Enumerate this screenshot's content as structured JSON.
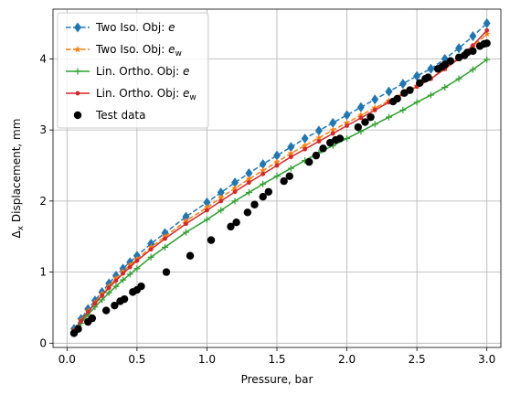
{
  "chart_data": {
    "type": "line",
    "xlabel": "Pressure, bar",
    "ylabel": "Δx Displacement, mm",
    "ylabel_main": "Δ",
    "ylabel_sub": "x",
    "ylabel_rest": " Displacement, mm",
    "xlim": [
      -0.1,
      3.1
    ],
    "ylim": [
      -0.06,
      4.7
    ],
    "xticks": [
      0.0,
      0.5,
      1.0,
      1.5,
      2.0,
      2.5,
      3.0
    ],
    "xtick_labels": [
      "0.0",
      "0.5",
      "1.0",
      "1.5",
      "2.0",
      "2.5",
      "3.0"
    ],
    "yticks": [
      0,
      1,
      2,
      3,
      4
    ],
    "ytick_labels": [
      "0",
      "1",
      "2",
      "3",
      "4"
    ],
    "grid": true,
    "legend_position": "upper-left",
    "x": [
      0.05,
      0.1,
      0.15,
      0.2,
      0.25,
      0.3,
      0.35,
      0.4,
      0.45,
      0.5,
      0.6,
      0.7,
      0.85,
      1.0,
      1.1,
      1.2,
      1.3,
      1.4,
      1.5,
      1.6,
      1.7,
      1.8,
      1.9,
      2.0,
      2.1,
      2.2,
      2.3,
      2.4,
      2.5,
      2.6,
      2.7,
      2.8,
      2.9,
      3.0
    ],
    "series": [
      {
        "name": "Two Iso. Obj: e",
        "legend_main": "Two Iso. Obj: ",
        "legend_italic": "e",
        "legend_sub": "",
        "color": "#1f77b4",
        "dashed": true,
        "marker": "diamond",
        "values": [
          0.2,
          0.34,
          0.48,
          0.6,
          0.72,
          0.84,
          0.95,
          1.05,
          1.14,
          1.23,
          1.4,
          1.55,
          1.78,
          1.98,
          2.12,
          2.26,
          2.39,
          2.52,
          2.64,
          2.76,
          2.88,
          2.99,
          3.1,
          3.21,
          3.32,
          3.43,
          3.54,
          3.65,
          3.76,
          3.86,
          4.0,
          4.15,
          4.32,
          4.5
        ]
      },
      {
        "name": "Two Iso. Obj: e_w",
        "legend_main": "Two Iso. Obj: ",
        "legend_italic": "e",
        "legend_sub": "w",
        "color": "#ff7f0e",
        "dashed": true,
        "marker": "star",
        "values": [
          0.18,
          0.32,
          0.45,
          0.57,
          0.69,
          0.8,
          0.91,
          1.01,
          1.1,
          1.18,
          1.35,
          1.5,
          1.72,
          1.91,
          2.05,
          2.18,
          2.31,
          2.43,
          2.55,
          2.67,
          2.78,
          2.89,
          3.0,
          3.1,
          3.21,
          3.31,
          3.41,
          3.52,
          3.62,
          3.73,
          3.86,
          4.0,
          4.17,
          4.35
        ]
      },
      {
        "name": "Lin. Ortho. Obj: e",
        "legend_main": "Lin. Ortho. Obj: ",
        "legend_italic": "e",
        "legend_sub": "",
        "color": "#2ca02c",
        "dashed": false,
        "marker": "plus",
        "values": [
          0.16,
          0.28,
          0.4,
          0.51,
          0.61,
          0.71,
          0.8,
          0.89,
          0.97,
          1.05,
          1.21,
          1.35,
          1.56,
          1.74,
          1.87,
          2.0,
          2.12,
          2.24,
          2.35,
          2.46,
          2.57,
          2.68,
          2.78,
          2.88,
          2.98,
          3.08,
          3.18,
          3.28,
          3.39,
          3.49,
          3.6,
          3.72,
          3.85,
          3.99
        ]
      },
      {
        "name": "Lin. Ortho. Obj: e_w",
        "legend_main": "Lin. Ortho. Obj: ",
        "legend_italic": "e",
        "legend_sub": "w",
        "color": "#d62728",
        "dashed": false,
        "marker": "dot",
        "values": [
          0.18,
          0.31,
          0.44,
          0.56,
          0.67,
          0.78,
          0.88,
          0.98,
          1.07,
          1.16,
          1.32,
          1.47,
          1.68,
          1.87,
          2.0,
          2.13,
          2.26,
          2.38,
          2.5,
          2.62,
          2.73,
          2.84,
          2.95,
          3.06,
          3.17,
          3.28,
          3.39,
          3.5,
          3.61,
          3.72,
          3.86,
          4.01,
          4.19,
          4.4
        ]
      }
    ],
    "test_data": {
      "name": "Test data",
      "legend_label": "Test data",
      "color": "#000000",
      "marker": "circle",
      "points": [
        [
          0.05,
          0.14
        ],
        [
          0.08,
          0.2
        ],
        [
          0.15,
          0.3
        ],
        [
          0.18,
          0.35
        ],
        [
          0.28,
          0.46
        ],
        [
          0.34,
          0.53
        ],
        [
          0.38,
          0.59
        ],
        [
          0.41,
          0.62
        ],
        [
          0.47,
          0.72
        ],
        [
          0.5,
          0.75
        ],
        [
          0.53,
          0.8
        ],
        [
          0.71,
          1.0
        ],
        [
          0.88,
          1.23
        ],
        [
          1.03,
          1.45
        ],
        [
          1.17,
          1.64
        ],
        [
          1.21,
          1.7
        ],
        [
          1.29,
          1.84
        ],
        [
          1.34,
          1.95
        ],
        [
          1.4,
          2.06
        ],
        [
          1.44,
          2.13
        ],
        [
          1.55,
          2.28
        ],
        [
          1.59,
          2.35
        ],
        [
          1.73,
          2.55
        ],
        [
          1.78,
          2.64
        ],
        [
          1.83,
          2.74
        ],
        [
          1.88,
          2.82
        ],
        [
          1.92,
          2.86
        ],
        [
          1.95,
          2.88
        ],
        [
          2.08,
          3.04
        ],
        [
          2.13,
          3.11
        ],
        [
          2.17,
          3.18
        ],
        [
          2.33,
          3.4
        ],
        [
          2.36,
          3.44
        ],
        [
          2.41,
          3.52
        ],
        [
          2.45,
          3.56
        ],
        [
          2.52,
          3.66
        ],
        [
          2.56,
          3.72
        ],
        [
          2.58,
          3.74
        ],
        [
          2.65,
          3.86
        ],
        [
          2.68,
          3.89
        ],
        [
          2.7,
          3.92
        ],
        [
          2.74,
          3.97
        ],
        [
          2.8,
          4.02
        ],
        [
          2.84,
          4.05
        ],
        [
          2.86,
          4.09
        ],
        [
          2.9,
          4.11
        ],
        [
          2.95,
          4.18
        ],
        [
          2.98,
          4.21
        ],
        [
          3.0,
          4.22
        ]
      ]
    }
  }
}
